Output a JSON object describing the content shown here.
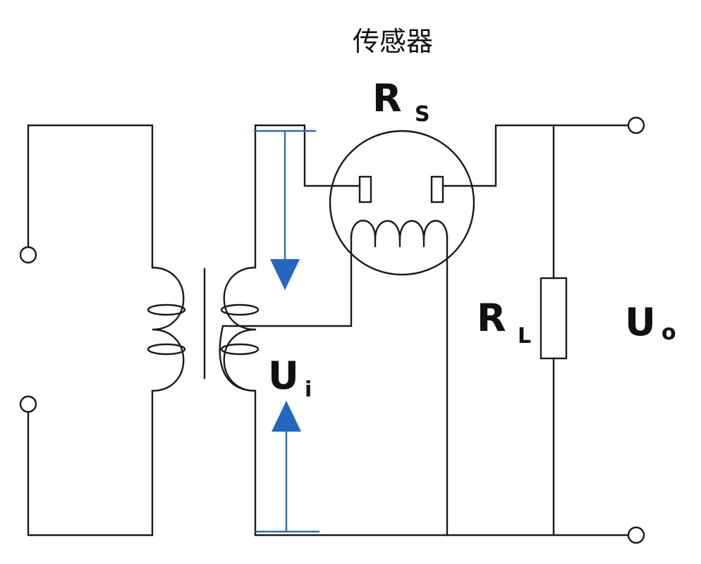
{
  "labels": {
    "sensor_title": "传感器",
    "rs_main": "R",
    "rs_sub": "S",
    "rl_main": "R",
    "rl_sub": "L",
    "ui_main": "U",
    "ui_sub": "i",
    "uo_main": "U",
    "uo_sub": "o"
  },
  "colors": {
    "wire": "#1a1a1a",
    "arrow": "#2467c1"
  }
}
